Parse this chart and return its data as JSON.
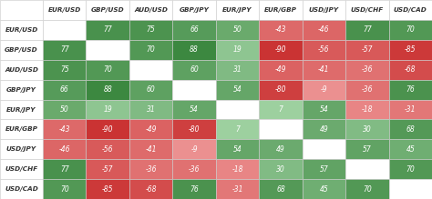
{
  "row_labels": [
    "EUR/USD",
    "GBP/USD",
    "AUD/USD",
    "GBP/JPY",
    "EUR/JPY",
    "EUR/GBP",
    "USD/JPY",
    "USD/CHF",
    "USD/CAD"
  ],
  "col_labels": [
    "EUR/USD",
    "GBP/USD",
    "AUD/USD",
    "GBP/JPY",
    "EUR/JPY",
    "EUR/GBP",
    "USD/JPY",
    "USD/CHF",
    "USD/CAD"
  ],
  "matrix": [
    [
      null,
      77,
      75,
      66,
      50,
      -43,
      -46,
      77,
      70
    ],
    [
      77,
      null,
      70,
      88,
      19,
      -90,
      -56,
      -57,
      -85
    ],
    [
      75,
      70,
      null,
      60,
      31,
      -49,
      -41,
      -36,
      -68
    ],
    [
      66,
      88,
      60,
      null,
      54,
      -80,
      -9,
      -36,
      76
    ],
    [
      50,
      19,
      31,
      54,
      null,
      7,
      54,
      -18,
      -31
    ],
    [
      -43,
      -90,
      -49,
      -80,
      7,
      null,
      49,
      30,
      68
    ],
    [
      -46,
      -56,
      -41,
      -9,
      54,
      49,
      null,
      57,
      45
    ],
    [
      77,
      -57,
      -36,
      -36,
      -18,
      30,
      57,
      null,
      70
    ],
    [
      70,
      -85,
      -68,
      76,
      -31,
      68,
      45,
      70,
      null
    ]
  ],
  "bg_color": "#f2f2f2",
  "header_cell_bg": "#ffffff",
  "header_text_color": "#333333",
  "row_label_bg": "#ffffff",
  "null_color": "#ffffff",
  "grid_color": "#cccccc",
  "positive_dark": "#2e7d32",
  "positive_light": "#a5d6a7",
  "negative_dark": "#c62828",
  "negative_light": "#ef9a9a",
  "cell_text_color": "#ffffff",
  "header_fontsize": 5.2,
  "cell_fontsize": 5.5,
  "row_label_fontsize": 5.2
}
